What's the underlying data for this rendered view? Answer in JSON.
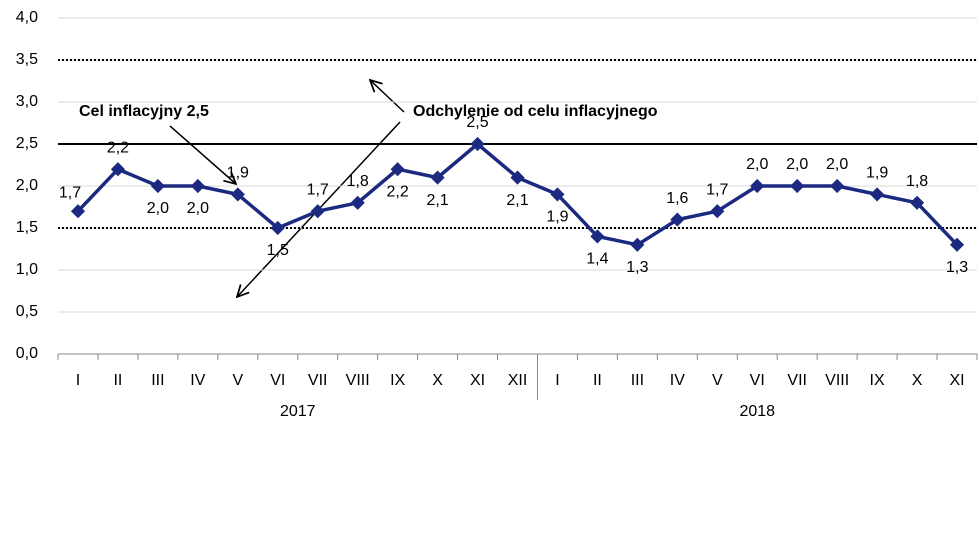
{
  "chart_data": {
    "type": "line",
    "groups": [
      {
        "name": "2017",
        "categories": [
          "I",
          "II",
          "III",
          "IV",
          "V",
          "VI",
          "VII",
          "VIII",
          "IX",
          "X",
          "XI",
          "XII"
        ]
      },
      {
        "name": "2018",
        "categories": [
          "I",
          "II",
          "III",
          "IV",
          "V",
          "VI",
          "VII",
          "VIII",
          "IX",
          "X",
          "XI"
        ]
      }
    ],
    "series": [
      {
        "color": "#1b2a80",
        "values": [
          1.7,
          2.2,
          2.0,
          2.0,
          1.9,
          1.5,
          1.7,
          1.8,
          2.2,
          2.1,
          2.5,
          2.1,
          1.9,
          1.4,
          1.3,
          1.6,
          1.7,
          2.0,
          2.0,
          2.0,
          1.9,
          1.8,
          1.3
        ],
        "value_labels": [
          "1,7",
          "2,2",
          "2,0",
          "2,0",
          "1,9",
          "1,5",
          "1,7",
          "1,8",
          "2,2",
          "2,1",
          "2,5",
          "2,1",
          "1,9",
          "1,4",
          "1,3",
          "1,6",
          "1,7",
          "2,0",
          "2,0",
          "2,0",
          "1,9",
          "1,8",
          "1,3"
        ]
      }
    ],
    "ylim": [
      0,
      4
    ],
    "yticks": [
      {
        "value": 0,
        "label": "0,0"
      },
      {
        "value": 0.5,
        "label": "0,5"
      },
      {
        "value": 1,
        "label": "1,0"
      },
      {
        "value": 1.5,
        "label": "1,5"
      },
      {
        "value": 2,
        "label": "2,0"
      },
      {
        "value": 2.5,
        "label": "2,5"
      },
      {
        "value": 3,
        "label": "3,0"
      },
      {
        "value": 3.5,
        "label": "3,5"
      },
      {
        "value": 4,
        "label": "4,0"
      }
    ],
    "grid": true,
    "reference_lines": [
      {
        "value": 2.5,
        "style": "solid",
        "label": "Cel inflacyjny 2,5"
      },
      {
        "value": 3.5,
        "style": "dotted"
      },
      {
        "value": 1.5,
        "style": "dotted"
      }
    ],
    "annotation": "Odchylenie od celu inflacyjnego"
  }
}
